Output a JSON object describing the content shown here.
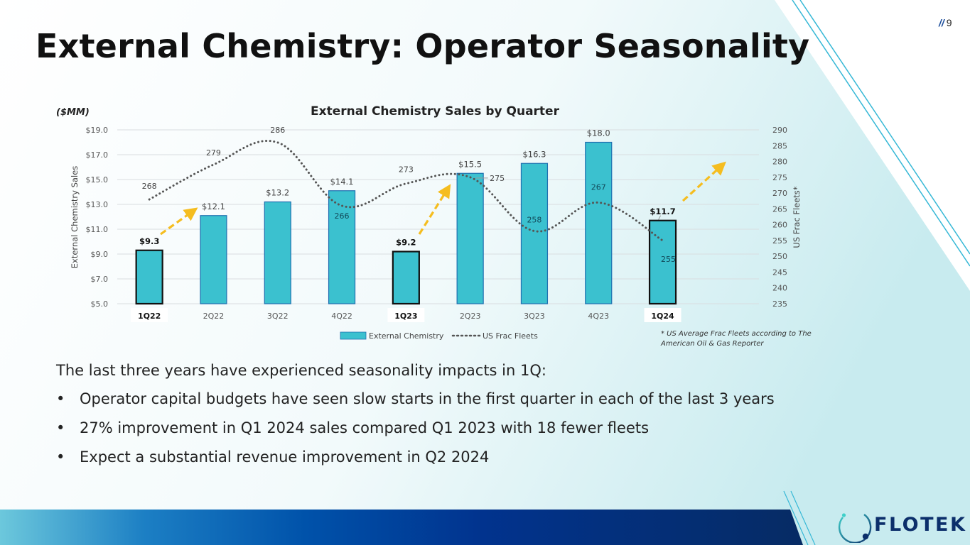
{
  "slide": {
    "title": "External Chemistry: Operator Seasonality",
    "page_number": "9",
    "page_slash": "//",
    "intro": "The last three years have experienced seasonality impacts in 1Q:",
    "bullets": [
      "Operator capital budgets have seen slow starts in the first quarter in each of the last 3 years",
      "27% improvement in Q1 2024 sales compared Q1 2023 with 18 fewer fleets",
      "Expect a substantial revenue improvement in Q2 2024"
    ],
    "bullet_glyph": "•",
    "logo_text": "FLOTEK",
    "colors": {
      "bar": "#3bc1cf",
      "bar_border": "#1f6fb0",
      "highlight_border": "#111111",
      "line": "#555555",
      "arrow": "#f5bd1f",
      "brand_dark": "#0c2f6b",
      "accent_cyan": "#36b8d6"
    }
  },
  "chart_data": {
    "type": "bar",
    "title": "External Chemistry Sales by Quarter",
    "unit_label": "($MM)",
    "ylabel": "External Chemistry Sales",
    "y2label": "US Frac Fleets*",
    "categories": [
      "1Q22",
      "2Q22",
      "3Q22",
      "4Q22",
      "1Q23",
      "2Q23",
      "3Q23",
      "4Q23",
      "1Q24"
    ],
    "highlighted_categories": [
      "1Q22",
      "1Q23",
      "1Q24"
    ],
    "ylim": [
      5.0,
      19.0
    ],
    "y_ticks": [
      "$5.0",
      "$7.0",
      "$9.0",
      "$11.0",
      "$13.0",
      "$15.0",
      "$17.0",
      "$19.0"
    ],
    "y2lim": [
      235,
      290
    ],
    "y2_ticks": [
      "235",
      "240",
      "245",
      "250",
      "255",
      "260",
      "265",
      "270",
      "275",
      "280",
      "285",
      "290"
    ],
    "series": [
      {
        "name": "External Chemistry",
        "kind": "bar",
        "axis": "left",
        "values": [
          9.3,
          12.1,
          13.2,
          14.1,
          9.2,
          15.5,
          16.3,
          18.0,
          11.7
        ],
        "labels": [
          "$9.3",
          "$12.1",
          "$13.2",
          "$14.1",
          "$9.2",
          "$15.5",
          "$16.3",
          "$18.0",
          "$11.7"
        ]
      },
      {
        "name": "US Frac Fleets",
        "kind": "line-dotted",
        "axis": "right",
        "values": [
          268,
          279,
          286,
          266,
          273,
          275,
          258,
          267,
          255
        ],
        "labels": [
          "268",
          "279",
          "286",
          "266",
          "273",
          "275",
          "258",
          "267",
          "255"
        ]
      }
    ],
    "annotations": [
      {
        "type": "arrow",
        "description": "up-trend arrow from 1Q22 toward 2Q22"
      },
      {
        "type": "arrow",
        "description": "up-trend arrow from 1Q23 toward 2Q23"
      },
      {
        "type": "arrow",
        "description": "up-trend arrow from 1Q24 toward next quarter"
      }
    ],
    "legend": {
      "placement": "bottom",
      "entries": [
        "External Chemistry",
        "US Frac Fleets"
      ]
    },
    "footnote": [
      "* US Average Frac Fleets  according to The",
      "American Oil & Gas Reporter"
    ],
    "grid": true
  }
}
